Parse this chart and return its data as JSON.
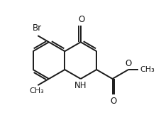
{
  "background_color": "#ffffff",
  "line_color": "#1a1a1a",
  "line_width": 1.4,
  "font_size": 8.5,
  "figsize": [
    2.2,
    1.76
  ],
  "dpi": 100,
  "xlim": [
    0,
    220
  ],
  "ylim": [
    0,
    176
  ]
}
